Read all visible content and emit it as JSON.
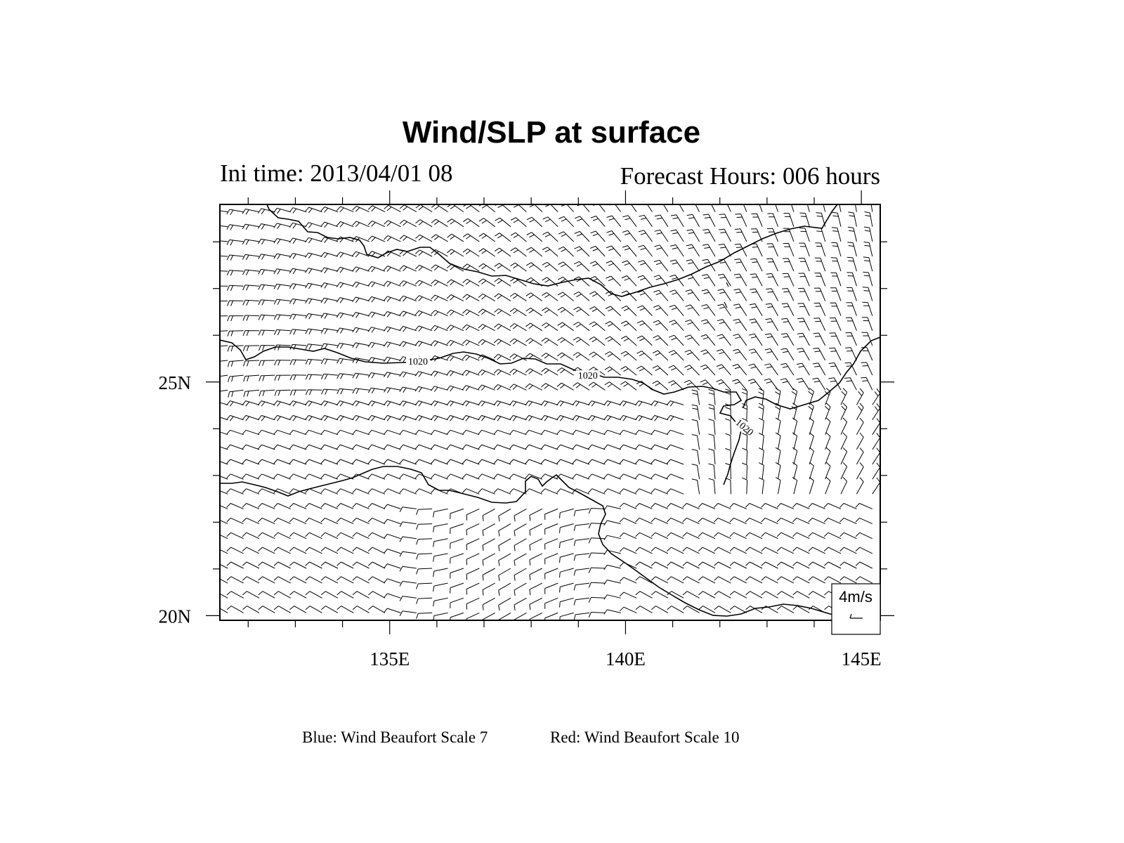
{
  "title": "Wind/SLP at surface",
  "ini_time": "Ini time: 2013/04/01 08",
  "forecast_hours": "Forecast Hours: 006 hours",
  "footer": {
    "blue_note": "Blue: Wind Beaufort Scale 7",
    "red_note": "Red:  Wind Beaufort Scale 10"
  },
  "reference_vector": {
    "label": "4m/s"
  },
  "map": {
    "lon_range": [
      131.4,
      145.4
    ],
    "lat_range": [
      19.9,
      28.8
    ],
    "x_ticks": [
      {
        "value": 135,
        "label": "135E"
      },
      {
        "value": 140,
        "label": "140E"
      },
      {
        "value": 145,
        "label": "145E"
      }
    ],
    "y_ticks": [
      {
        "value": 25,
        "label": "25N"
      },
      {
        "value": 20,
        "label": "20N"
      }
    ],
    "minor_lon_step": 1,
    "minor_lat_step": 1,
    "wind_field": "dense grid of wind barbs: northeasterly-to-easterly flow over most of the domain, anticyclonic turning near 137-140E 21-22N, southerly component in the southeast corner",
    "contour_level": "1020",
    "contour_labels": [
      {
        "text": "1020",
        "lon": 135.6,
        "lat": 25.4
      },
      {
        "text": "1020",
        "lon": 139.2,
        "lat": 25.1
      },
      {
        "text": "1020",
        "lon": 142.5,
        "lat": 24.0
      }
    ]
  },
  "colors": {
    "foreground": "#000000",
    "background": "#ffffff"
  }
}
